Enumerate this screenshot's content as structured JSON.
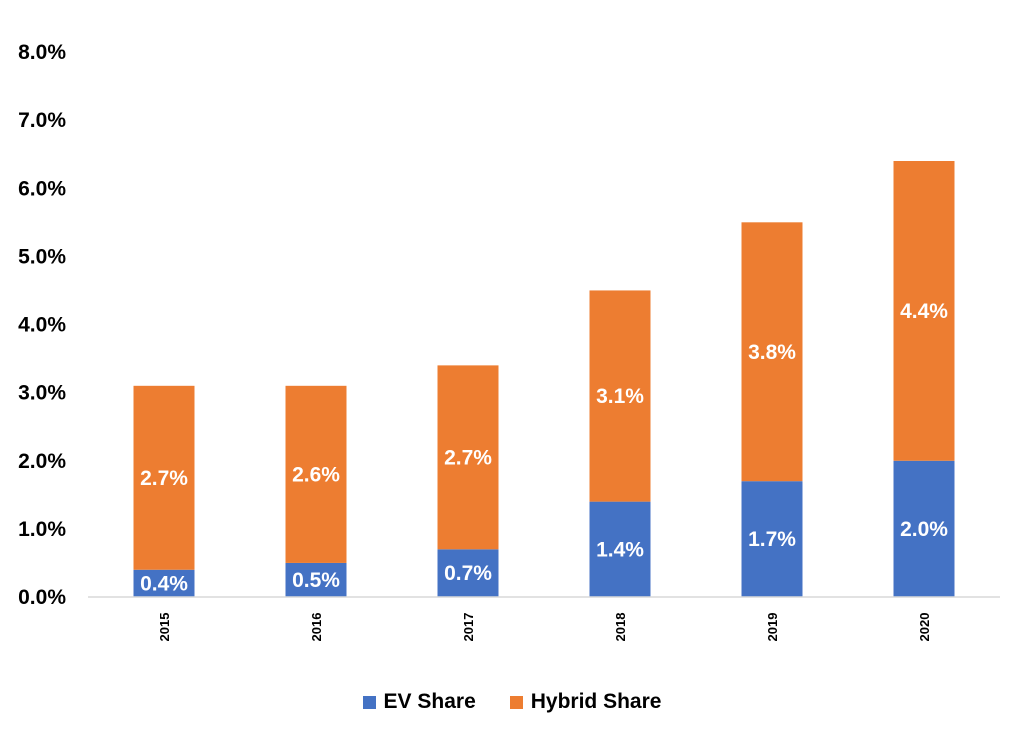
{
  "chart_data": {
    "type": "bar",
    "stacked": true,
    "categories": [
      "2015",
      "2016",
      "2017",
      "2018",
      "2019",
      "2020"
    ],
    "series": [
      {
        "name": "EV Share",
        "color": "#4472C4",
        "values": [
          0.4,
          0.5,
          0.7,
          1.4,
          1.7,
          2.0
        ],
        "labels": [
          "0.4%",
          "0.5%",
          "0.7%",
          "1.4%",
          "1.7%",
          "2.0%"
        ]
      },
      {
        "name": "Hybrid Share",
        "color": "#ED7D31",
        "values": [
          2.7,
          2.6,
          2.7,
          3.1,
          3.8,
          4.4
        ],
        "labels": [
          "2.7%",
          "2.6%",
          "2.7%",
          "3.1%",
          "3.8%",
          "4.4%"
        ]
      }
    ],
    "y_ticks": [
      "0.0%",
      "1.0%",
      "2.0%",
      "3.0%",
      "4.0%",
      "5.0%",
      "6.0%",
      "7.0%",
      "8.0%"
    ],
    "ylim": [
      0,
      8
    ],
    "grid": false,
    "legend_position": "bottom",
    "title": "",
    "xlabel": "",
    "ylabel": ""
  }
}
